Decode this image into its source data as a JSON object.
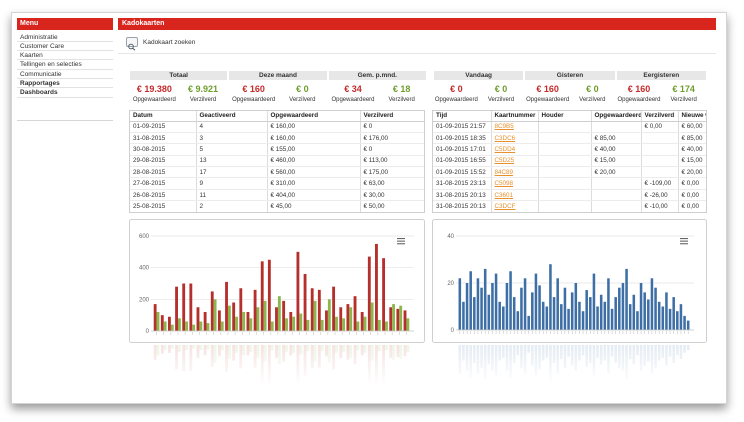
{
  "sidebar": {
    "title": "Menu",
    "items": [
      {
        "label": "Administratie"
      },
      {
        "label": "Customer Care"
      },
      {
        "label": "Kaarten"
      },
      {
        "label": "Tellingen en selecties"
      },
      {
        "label": "Communicatie"
      },
      {
        "label": "Rapportages"
      },
      {
        "label": "Dashboards"
      }
    ]
  },
  "header": {
    "title": "Kadokaarten"
  },
  "search": {
    "label": "Kadokaart zoeken",
    "icon": "search-card-icon"
  },
  "colors": {
    "brand_red": "#d8261e",
    "charged": "#c62a2a",
    "redeemed": "#6e9e2e",
    "bar_charged": "#b5302d",
    "bar_redeemed": "#8db64f",
    "bar_blue": "#3d6fa6",
    "link": "#e8902a"
  },
  "stats": {
    "left": [
      {
        "title": "Totaal",
        "charged": "€ 19.380",
        "redeemed": "€ 9.921",
        "charged_label": "Opgewaardeerd",
        "redeemed_label": "Verzilverd"
      },
      {
        "title": "Deze maand",
        "charged": "€ 160",
        "redeemed": "€ 0",
        "charged_label": "Opgewaardeerd",
        "redeemed_label": "Verzilverd"
      },
      {
        "title": "Gem. p.mnd.",
        "charged": "€ 34",
        "redeemed": "€ 18",
        "charged_label": "Opgewaardeerd",
        "redeemed_label": "Verzilverd"
      }
    ],
    "right": [
      {
        "title": "Vandaag",
        "charged": "€ 0",
        "redeemed": "€ 0",
        "charged_label": "Opgewaardeerd",
        "redeemed_label": "Verzilverd"
      },
      {
        "title": "Gisteren",
        "charged": "€ 160",
        "redeemed": "€ 0",
        "charged_label": "Opgewaardeerd",
        "redeemed_label": "Verzilverd"
      },
      {
        "title": "Eergisteren",
        "charged": "€ 160",
        "redeemed": "€ 174",
        "charged_label": "Opgewaardeerd",
        "redeemed_label": "Verzilverd"
      }
    ]
  },
  "daily_table": {
    "headers": [
      "Datum",
      "Geactiveerd",
      "Opgewaardeerd",
      "Verzilverd"
    ],
    "rows": [
      [
        "01-09-2015",
        "4",
        "€ 160,00",
        "€ 0"
      ],
      [
        "31-08-2015",
        "3",
        "€ 160,00",
        "€ 176,00"
      ],
      [
        "30-08-2015",
        "5",
        "€ 155,00",
        "€ 0"
      ],
      [
        "29-08-2015",
        "13",
        "€ 460,00",
        "€ 113,00"
      ],
      [
        "28-08-2015",
        "17",
        "€ 560,00",
        "€ 175,00"
      ],
      [
        "27-08-2015",
        "9",
        "€ 310,00",
        "€ 63,00"
      ],
      [
        "26-08-2015",
        "11",
        "€ 404,00",
        "€ 30,00"
      ],
      [
        "25-08-2015",
        "2",
        "€ 45,00",
        "€ 50,00"
      ]
    ]
  },
  "transactions_table": {
    "headers": [
      "Tijd",
      "Kaartnummer",
      "Houder",
      "Opgewaardeerd",
      "Verzilverd",
      "Nieuwe w"
    ],
    "rows": [
      [
        "01-09-2015 21:57",
        "8C9B5",
        "",
        "",
        "€ 0,00",
        "€ 60,00"
      ],
      [
        "01-09-2015 18:35",
        "C3DC6",
        "",
        "€ 85,00",
        "",
        "€ 85,00"
      ],
      [
        "01-09-2015 17:01",
        "C5DD4",
        "",
        "€ 40,00",
        "",
        "€ 40,00"
      ],
      [
        "01-09-2015 16:55",
        "C5D25",
        "",
        "€ 15,00",
        "",
        "€ 15,00"
      ],
      [
        "01-09-2015 15:52",
        "84C89",
        "",
        "€ 20,00",
        "",
        "€ 20,00"
      ],
      [
        "31-08-2015 23:13",
        "C5098",
        "",
        "",
        "€ -109,00",
        "€ 0,00"
      ],
      [
        "31-08-2015 20:13",
        "C3601",
        "",
        "",
        "€ -26,00",
        "€ 0,00"
      ],
      [
        "31-08-2015 20:13",
        "C3DCF",
        "",
        "",
        "€ -10,00",
        "€ 0,00"
      ]
    ]
  },
  "chart_data": [
    {
      "type": "bar",
      "ylim": [
        0,
        600
      ],
      "yticks": [
        600,
        400,
        200,
        0
      ],
      "grid": true,
      "menu_icon": "hamburger-icon",
      "series": [
        {
          "color": "#b5302d",
          "values": [
            170,
            100,
            90,
            280,
            300,
            300,
            150,
            120,
            250,
            130,
            310,
            180,
            270,
            120,
            260,
            440,
            450,
            150,
            190,
            120,
            500,
            360,
            270,
            260,
            130,
            280,
            150,
            170,
            220,
            120,
            470,
            550,
            460,
            150,
            140,
            130
          ]
        },
        {
          "color": "#8db64f",
          "values": [
            120,
            60,
            40,
            80,
            60,
            40,
            60,
            50,
            200,
            60,
            160,
            90,
            120,
            80,
            150,
            190,
            60,
            220,
            80,
            90,
            110,
            70,
            190,
            70,
            200,
            90,
            80,
            150,
            60,
            90,
            180,
            70,
            60,
            170,
            160,
            80
          ]
        }
      ]
    },
    {
      "type": "bar",
      "ylim": [
        0,
        40
      ],
      "yticks": [
        40,
        20,
        0
      ],
      "grid": true,
      "menu_icon": "hamburger-icon",
      "series": [
        {
          "color": "#3d6fa6",
          "values": [
            22,
            12,
            20,
            25,
            14,
            22,
            18,
            26,
            15,
            20,
            24,
            12,
            10,
            20,
            25,
            14,
            8,
            18,
            22,
            6,
            16,
            24,
            19,
            12,
            10,
            28,
            14,
            22,
            11,
            18,
            9,
            16,
            20,
            12,
            8,
            17,
            14,
            24,
            10,
            15,
            12,
            22,
            9,
            14,
            18,
            20,
            26,
            11,
            15,
            8,
            20,
            16,
            13,
            22,
            18,
            12,
            10,
            16,
            9,
            14,
            8,
            11,
            6,
            4
          ]
        }
      ]
    }
  ]
}
